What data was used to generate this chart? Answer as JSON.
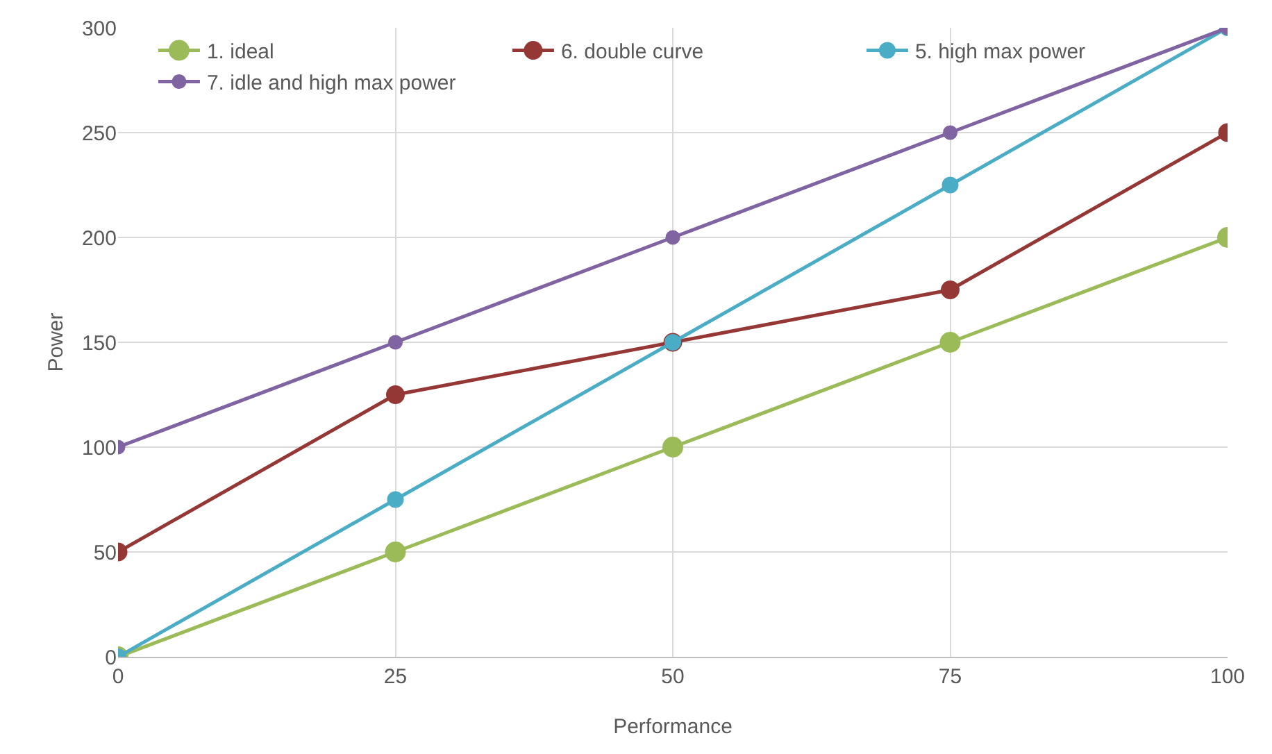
{
  "chart_data": {
    "type": "line",
    "xlabel": "Performance",
    "ylabel": "Power",
    "x": [
      0,
      25,
      50,
      75,
      100
    ],
    "series": [
      {
        "name": "1. ideal",
        "color": "#9bbb59",
        "values": [
          0,
          50,
          100,
          150,
          200
        ]
      },
      {
        "name": "6. double curve",
        "color": "#953735",
        "values": [
          50,
          125,
          150,
          175,
          250
        ]
      },
      {
        "name": "5. high max power",
        "color": "#4bacc6",
        "values": [
          0,
          75,
          150,
          225,
          300
        ]
      },
      {
        "name": "7. idle and high max power",
        "color": "#8064a2",
        "values": [
          100,
          150,
          200,
          250,
          300
        ]
      }
    ],
    "xlim": [
      0,
      100
    ],
    "xticks": [
      0,
      25,
      50,
      75,
      100
    ],
    "ylim": [
      0,
      300
    ],
    "yticks": [
      0,
      50,
      100,
      150,
      200,
      250,
      300
    ],
    "grid": true,
    "legend": "top left",
    "marker": "circle",
    "line_style": "solid"
  }
}
